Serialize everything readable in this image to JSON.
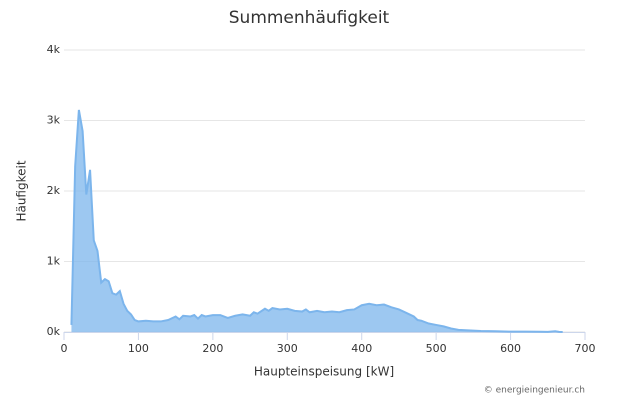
{
  "chart_data": {
    "type": "area",
    "title": "Summenhäufigkeit",
    "xlabel": "Haupteinspeisung [kW]",
    "ylabel": "Häufigkeit",
    "credit": "© energieingenieur.ch",
    "color": "#7cb5ec",
    "x": [
      10,
      15,
      20,
      25,
      30,
      35,
      40,
      45,
      50,
      55,
      60,
      65,
      70,
      75,
      80,
      85,
      90,
      95,
      100,
      110,
      120,
      130,
      140,
      150,
      155,
      160,
      170,
      175,
      180,
      185,
      190,
      200,
      210,
      220,
      230,
      240,
      250,
      255,
      260,
      270,
      275,
      280,
      290,
      300,
      310,
      320,
      325,
      330,
      340,
      350,
      360,
      370,
      380,
      390,
      400,
      410,
      420,
      430,
      440,
      450,
      460,
      470,
      475,
      480,
      490,
      500,
      510,
      520,
      530,
      540,
      560,
      580,
      600,
      620,
      640,
      650,
      660,
      665,
      670
    ],
    "values": [
      100,
      2350,
      3150,
      2850,
      1950,
      2300,
      1300,
      1150,
      700,
      750,
      720,
      550,
      530,
      580,
      400,
      300,
      250,
      170,
      150,
      160,
      150,
      150,
      170,
      220,
      180,
      230,
      220,
      240,
      190,
      240,
      220,
      240,
      240,
      200,
      230,
      250,
      230,
      280,
      260,
      330,
      300,
      340,
      320,
      330,
      300,
      290,
      320,
      280,
      300,
      280,
      290,
      280,
      310,
      320,
      380,
      400,
      380,
      390,
      350,
      320,
      270,
      220,
      170,
      160,
      120,
      100,
      80,
      50,
      30,
      25,
      15,
      10,
      5,
      5,
      3,
      2,
      10,
      2,
      0
    ],
    "xlim": [
      0,
      700
    ],
    "xticks": [
      0,
      100,
      200,
      300,
      400,
      500,
      600,
      700
    ],
    "ylim": [
      0,
      4000
    ],
    "yticks": [
      {
        "value": 0,
        "label": "0k"
      },
      {
        "value": 1000,
        "label": "1k"
      },
      {
        "value": 2000,
        "label": "2k"
      },
      {
        "value": 3000,
        "label": "3k"
      },
      {
        "value": 4000,
        "label": "4k"
      }
    ],
    "grid": true
  }
}
